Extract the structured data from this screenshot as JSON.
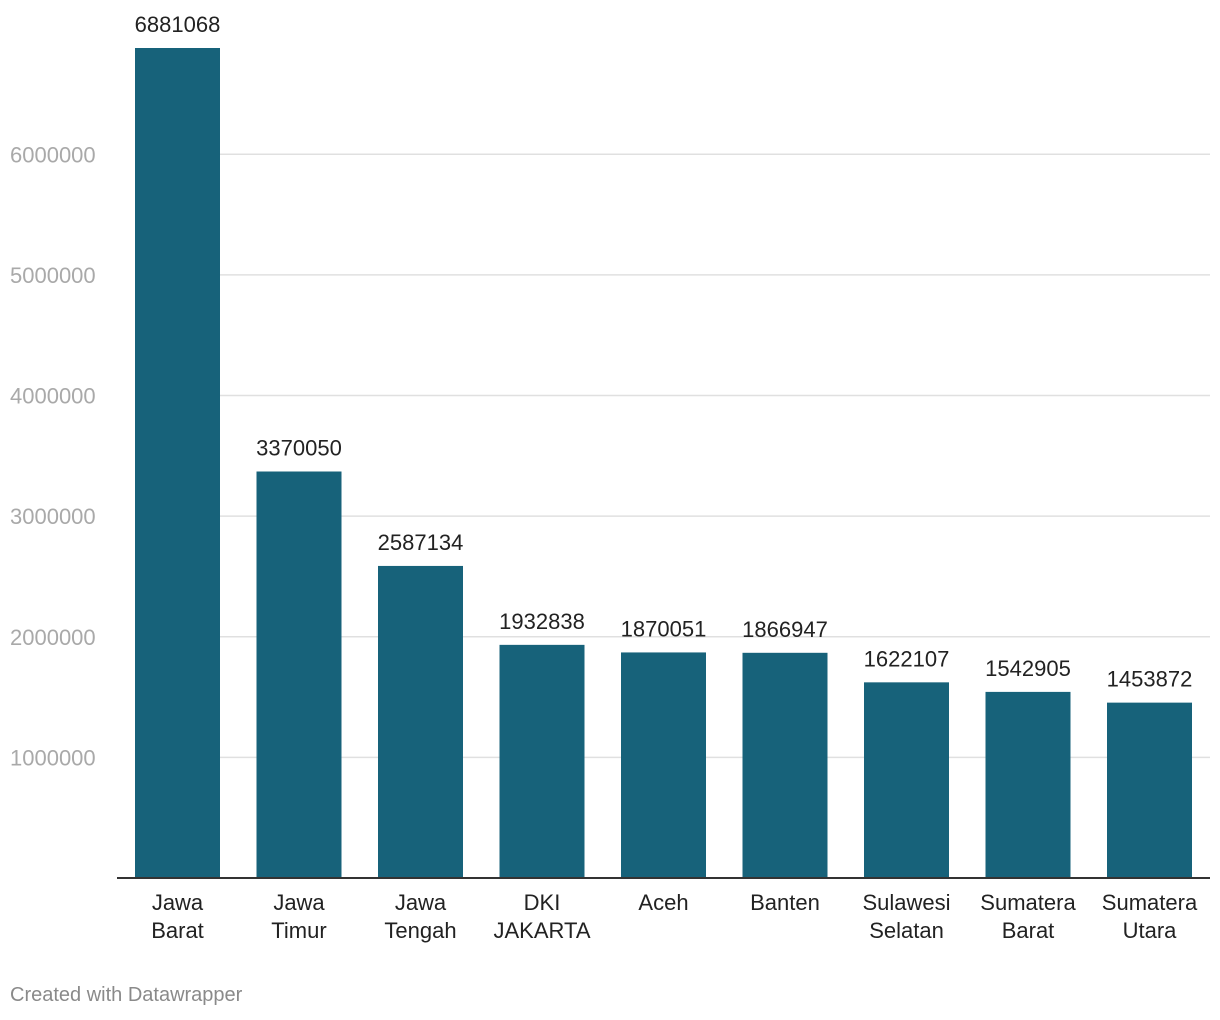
{
  "colors": {
    "bar": "#17627a",
    "grid": "#e0e0e0",
    "axis": "#333333"
  },
  "footer": {
    "credit": "Created with Datawrapper"
  },
  "chart_data": {
    "type": "bar",
    "title": "",
    "xlabel": "",
    "ylabel": "",
    "ylim": [
      0,
      6881068
    ],
    "yticks": [
      1000000,
      2000000,
      3000000,
      4000000,
      5000000,
      6000000
    ],
    "grid": true,
    "categories": [
      [
        "Jawa",
        "Barat"
      ],
      [
        "Jawa",
        "Timur"
      ],
      [
        "Jawa",
        "Tengah"
      ],
      [
        "DKI",
        "JAKARTA"
      ],
      [
        "Aceh"
      ],
      [
        "Banten"
      ],
      [
        "Sulawesi",
        "Selatan"
      ],
      [
        "Sumatera",
        "Barat"
      ],
      [
        "Sumatera",
        "Utara"
      ]
    ],
    "values": [
      6881068,
      3370050,
      2587134,
      1932838,
      1870051,
      1866947,
      1622107,
      1542905,
      1453872
    ]
  }
}
